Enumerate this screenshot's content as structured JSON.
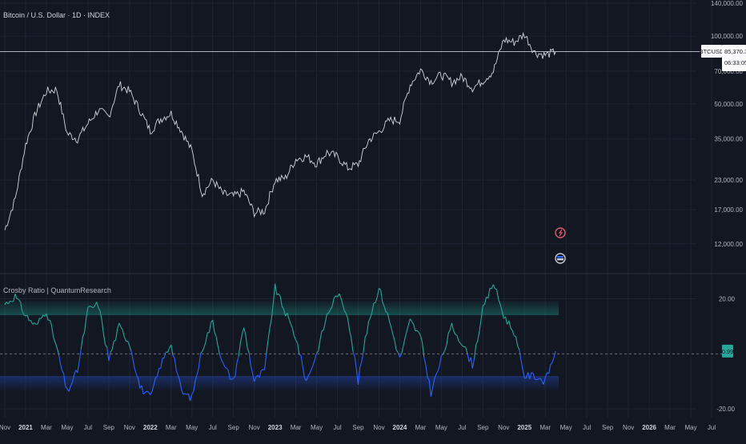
{
  "colors": {
    "background": "#131722",
    "grid": "#1f2433",
    "price_line": "#d1d4dc",
    "axis_text": "#b2b5be",
    "osc_up": "#26a69a",
    "osc_down": "#2962ff",
    "upper_band": "#1a7a70",
    "lower_band": "#1e3a8a",
    "crosshair": "#c8cbd3",
    "zero_line": "#787b86"
  },
  "chart_data": [
    {
      "type": "line",
      "title": "Bitcoin / U.S. Dollar · 1D · INDEX",
      "scale": "log",
      "ylim": [
        9000,
        140000
      ],
      "y_ticks": [
        "140,000.00",
        "100,000.00",
        "70,000.00",
        "50,000.00",
        "35,000.00",
        "23,000.00",
        "17,000.00",
        "12,000.00"
      ],
      "y_tick_values": [
        140000,
        100000,
        70000,
        50000,
        35000,
        23000,
        17000,
        12000
      ],
      "symbol_label": "BTCUSD",
      "last_price": "85,370.37",
      "countdown": "06:33:05",
      "last_value": 85370.37,
      "x": [
        "2020-11",
        "2020-12",
        "2021-01",
        "2021-02",
        "2021-03",
        "2021-04",
        "2021-05",
        "2021-06",
        "2021-07",
        "2021-08",
        "2021-09",
        "2021-10",
        "2021-11",
        "2021-12",
        "2022-01",
        "2022-02",
        "2022-03",
        "2022-04",
        "2022-05",
        "2022-06",
        "2022-07",
        "2022-08",
        "2022-09",
        "2022-10",
        "2022-11",
        "2022-12",
        "2023-01",
        "2023-02",
        "2023-03",
        "2023-04",
        "2023-05",
        "2023-06",
        "2023-07",
        "2023-08",
        "2023-09",
        "2023-10",
        "2023-11",
        "2023-12",
        "2024-01",
        "2024-02",
        "2024-03",
        "2024-04",
        "2024-05",
        "2024-06",
        "2024-07",
        "2024-08",
        "2024-09",
        "2024-10",
        "2024-11",
        "2024-12",
        "2025-01",
        "2025-02",
        "2025-03",
        "2025-04"
      ],
      "values": [
        13800,
        19000,
        33000,
        46000,
        57000,
        58000,
        37000,
        35000,
        41000,
        47000,
        44000,
        61000,
        57000,
        47000,
        38000,
        43000,
        45500,
        38000,
        31000,
        20000,
        23000,
        20000,
        19500,
        20500,
        16500,
        16800,
        23000,
        23500,
        28500,
        29300,
        27200,
        30500,
        29200,
        26000,
        27000,
        34500,
        37700,
        42300,
        42500,
        61000,
        71000,
        63000,
        67500,
        62600,
        66000,
        59000,
        63500,
        70000,
        96500,
        94000,
        102000,
        84500,
        82500,
        85370
      ],
      "annotations": [
        "earnings-marker",
        "dividend-marker"
      ]
    },
    {
      "type": "line",
      "title": "Crosby Ratio | QuantumResearch",
      "ylim": [
        -22,
        28
      ],
      "y_ticks": [
        "20.00",
        "-20.00"
      ],
      "y_tick_values": [
        20,
        -20
      ],
      "last_value_label": "0.99",
      "last_value": 0.99,
      "upper_threshold": 12,
      "lower_threshold": -8,
      "x": [
        "2020-11",
        "2020-12",
        "2021-01",
        "2021-02",
        "2021-03",
        "2021-04",
        "2021-05",
        "2021-06",
        "2021-07",
        "2021-08",
        "2021-09",
        "2021-10",
        "2021-11",
        "2021-12",
        "2022-01",
        "2022-02",
        "2022-03",
        "2022-04",
        "2022-05",
        "2022-06",
        "2022-07",
        "2022-08",
        "2022-09",
        "2022-10",
        "2022-11",
        "2022-12",
        "2023-01",
        "2023-02",
        "2023-03",
        "2023-04",
        "2023-05",
        "2023-06",
        "2023-07",
        "2023-08",
        "2023-09",
        "2023-10",
        "2023-11",
        "2023-12",
        "2024-01",
        "2024-02",
        "2024-03",
        "2024-04",
        "2024-05",
        "2024-06",
        "2024-07",
        "2024-08",
        "2024-09",
        "2024-10",
        "2024-11",
        "2024-12",
        "2025-01",
        "2025-02",
        "2025-03",
        "2025-04"
      ],
      "values": [
        18,
        21,
        14,
        10,
        16,
        2,
        -14,
        -6,
        16,
        18,
        -2,
        10,
        4,
        -12,
        -16,
        -4,
        4,
        -14,
        -16,
        2,
        12,
        -4,
        -10,
        10,
        -10,
        -6,
        24,
        15,
        6,
        -10,
        0,
        14,
        22,
        14,
        -10,
        12,
        24,
        12,
        -2,
        12,
        6,
        -14,
        -2,
        10,
        4,
        -4,
        16,
        26,
        14,
        8,
        -8,
        -8,
        -10,
        0.99
      ]
    }
  ],
  "x_axis": {
    "labels": [
      "Nov",
      "2021",
      "Mar",
      "May",
      "Jul",
      "Sep",
      "Nov",
      "2022",
      "Mar",
      "May",
      "Jul",
      "Sep",
      "Nov",
      "2023",
      "Mar",
      "May",
      "Jul",
      "Sep",
      "Nov",
      "2024",
      "Mar",
      "May",
      "Jul",
      "Sep",
      "Nov",
      "2025",
      "Mar",
      "May",
      "Jul",
      "Sep",
      "Nov",
      "2026",
      "Mar",
      "May",
      "Jul"
    ],
    "dates": [
      "2020-11",
      "2021-01",
      "2021-03",
      "2021-05",
      "2021-07",
      "2021-09",
      "2021-11",
      "2022-01",
      "2022-03",
      "2022-05",
      "2022-07",
      "2022-09",
      "2022-11",
      "2023-01",
      "2023-03",
      "2023-05",
      "2023-07",
      "2023-09",
      "2023-11",
      "2024-01",
      "2024-03",
      "2024-05",
      "2024-07",
      "2024-09",
      "2024-11",
      "2025-01",
      "2025-03",
      "2025-05",
      "2025-07",
      "2025-09",
      "2025-11",
      "2026-01",
      "2026-03",
      "2026-05",
      "2026-07"
    ]
  }
}
